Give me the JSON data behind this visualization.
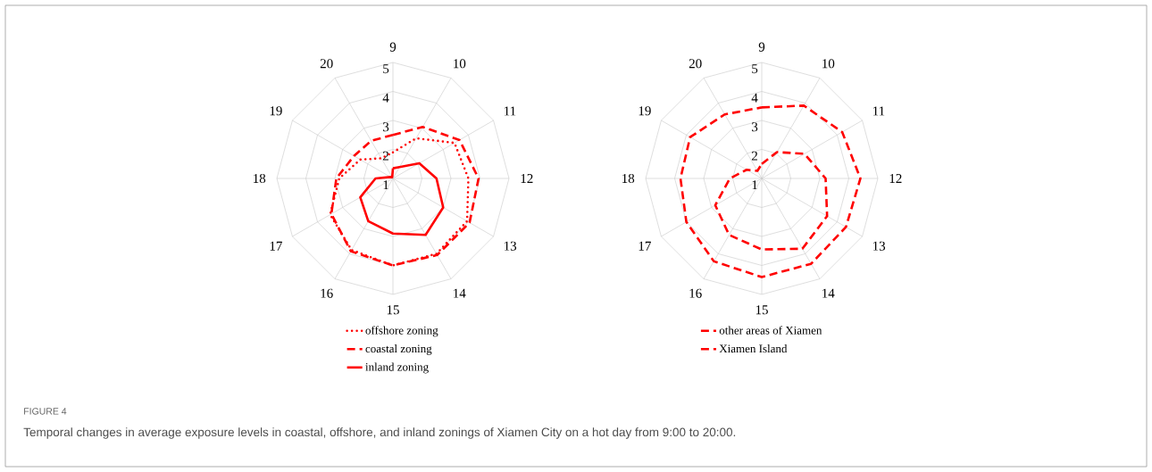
{
  "chart_data": [
    {
      "type": "radar",
      "categories": [
        "9",
        "10",
        "11",
        "12",
        "13",
        "14",
        "15",
        "16",
        "17",
        "18",
        "19",
        "20"
      ],
      "ylim": [
        1,
        5
      ],
      "yticks": [
        1,
        2,
        3,
        4,
        5
      ],
      "grid": true,
      "legend": "bottom",
      "marker": "none",
      "series": [
        {
          "name": "offshore zoning",
          "color": "#ff0000",
          "line_style": "dotted",
          "values": [
            1.9,
            2.6,
            3.45,
            3.6,
            3.95,
            4.0,
            4.0,
            3.85,
            3.5,
            2.85,
            2.3,
            1.8
          ]
        },
        {
          "name": "coastal zoning",
          "color": "#ff0000",
          "line_style": "dashed",
          "values": [
            2.5,
            3.05,
            3.65,
            3.95,
            4.05,
            4.05,
            4.0,
            3.9,
            3.45,
            2.95,
            2.55,
            2.5
          ]
        },
        {
          "name": "inland zoning",
          "color": "#ff0000",
          "line_style": "solid",
          "values": [
            1.35,
            1.45,
            2.05,
            2.5,
            3.0,
            3.25,
            2.9,
            2.7,
            2.3,
            1.6,
            1.1,
            1.05
          ]
        }
      ],
      "annotations": [
        "FIGURE 4",
        "Temporal changes in average exposure levels in coastal, offshore, and inland zonings of Xiamen City on a hot day from 9:00 to 20:00."
      ]
    },
    {
      "type": "radar",
      "categories": [
        "9",
        "10",
        "11",
        "12",
        "13",
        "14",
        "15",
        "16",
        "17",
        "18",
        "19",
        "20"
      ],
      "ylim": [
        1,
        5
      ],
      "yticks": [
        1,
        2,
        3,
        4,
        5
      ],
      "grid": true,
      "legend": "bottom",
      "marker": "none",
      "series": [
        {
          "name": "other areas of Xiamen",
          "color": "#ff0000",
          "line_style": "dashed",
          "values": [
            1.5,
            2.05,
            2.7,
            3.2,
            3.6,
            3.8,
            3.45,
            3.25,
            2.85,
            2.1,
            1.6,
            1.3
          ]
        },
        {
          "name": "Xiamen Island",
          "color": "#ff0000",
          "line_style": "dashed",
          "values": [
            3.45,
            3.9,
            4.2,
            4.4,
            4.35,
            4.4,
            4.4,
            4.3,
            4.0,
            3.8,
            3.85,
            3.55
          ]
        }
      ]
    }
  ]
}
